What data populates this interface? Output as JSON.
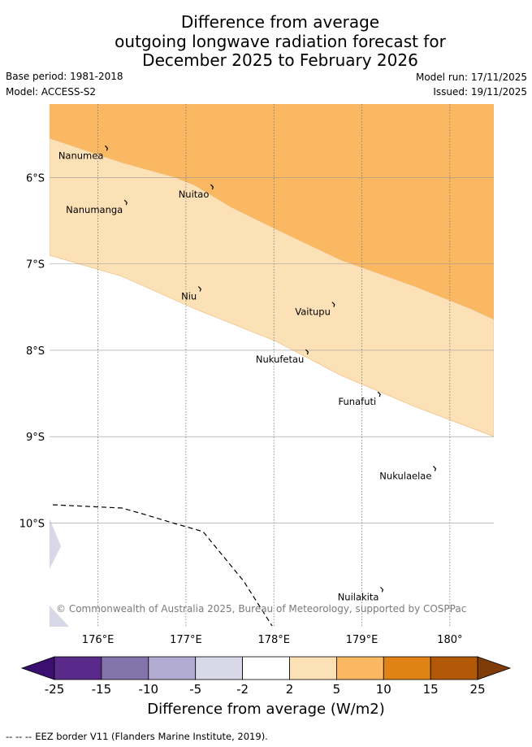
{
  "header": {
    "title_lines": [
      "Difference from average",
      "outgoing longwave radiation forecast for",
      "December 2025 to February 2026"
    ],
    "base_period": "Base period: 1981-2018",
    "model": "Model: ACCESS-S2",
    "model_run": "Model run: 17/11/2025",
    "issued": "Issued: 19/11/2025"
  },
  "map": {
    "lon_range": [
      175.45,
      180.5
    ],
    "lat_range": [
      -11.2,
      -5.15
    ],
    "lat_ticks": [
      {
        "value": -6,
        "label": "6°S"
      },
      {
        "value": -7,
        "label": "7°S"
      },
      {
        "value": -8,
        "label": "8°S"
      },
      {
        "value": -9,
        "label": "9°S"
      },
      {
        "value": -10,
        "label": "10°S"
      }
    ],
    "lon_ticks": [
      {
        "value": 176,
        "label": "176°E"
      },
      {
        "value": 177,
        "label": "177°E"
      },
      {
        "value": 178,
        "label": "178°E"
      },
      {
        "value": 179,
        "label": "179°E"
      },
      {
        "value": 180,
        "label": "180°"
      }
    ],
    "islands": [
      {
        "name": "Nanumea",
        "lon": 176.1,
        "lat": -5.67
      },
      {
        "name": "Nuitao",
        "lon": 177.3,
        "lat": -6.12
      },
      {
        "name": "Nanumanga",
        "lon": 176.32,
        "lat": -6.3
      },
      {
        "name": "Niu",
        "lon": 177.16,
        "lat": -7.3
      },
      {
        "name": "Vaitupu",
        "lon": 178.68,
        "lat": -7.48
      },
      {
        "name": "Nukufetau",
        "lon": 178.38,
        "lat": -8.03
      },
      {
        "name": "Funafuti",
        "lon": 179.2,
        "lat": -8.52
      },
      {
        "name": "Nukulaelae",
        "lon": 179.83,
        "lat": -9.38
      },
      {
        "name": "Nuilakita",
        "lon": 179.23,
        "lat": -10.78
      }
    ],
    "copyright": "© Commonwealth of Australia 2025, Bureau of Meteorology, supported by COSPPac",
    "colors": {
      "orange_5_10": "#fbb862",
      "peach_2_5": "#fde1b6",
      "lavender_-5_-2": "#d8d8e9"
    }
  },
  "colorbar": {
    "label": "Difference from average (W/m2)",
    "ticks": [
      "-25",
      "-15",
      "-10",
      "-5",
      "-2",
      "2",
      "5",
      "10",
      "15",
      "25"
    ],
    "colors": [
      "#3b0f70",
      "#5a2a8a",
      "#8573ac",
      "#b2abd2",
      "#d8d8e9",
      "#ffffff",
      "#fde1b6",
      "#fbb862",
      "#e08214",
      "#b35806",
      "#7f3b08"
    ]
  },
  "footer": {
    "eez_dash": "-- -- --",
    "eez_label": "EEZ border V11 (Flanders Marine Institute, 2019)."
  }
}
